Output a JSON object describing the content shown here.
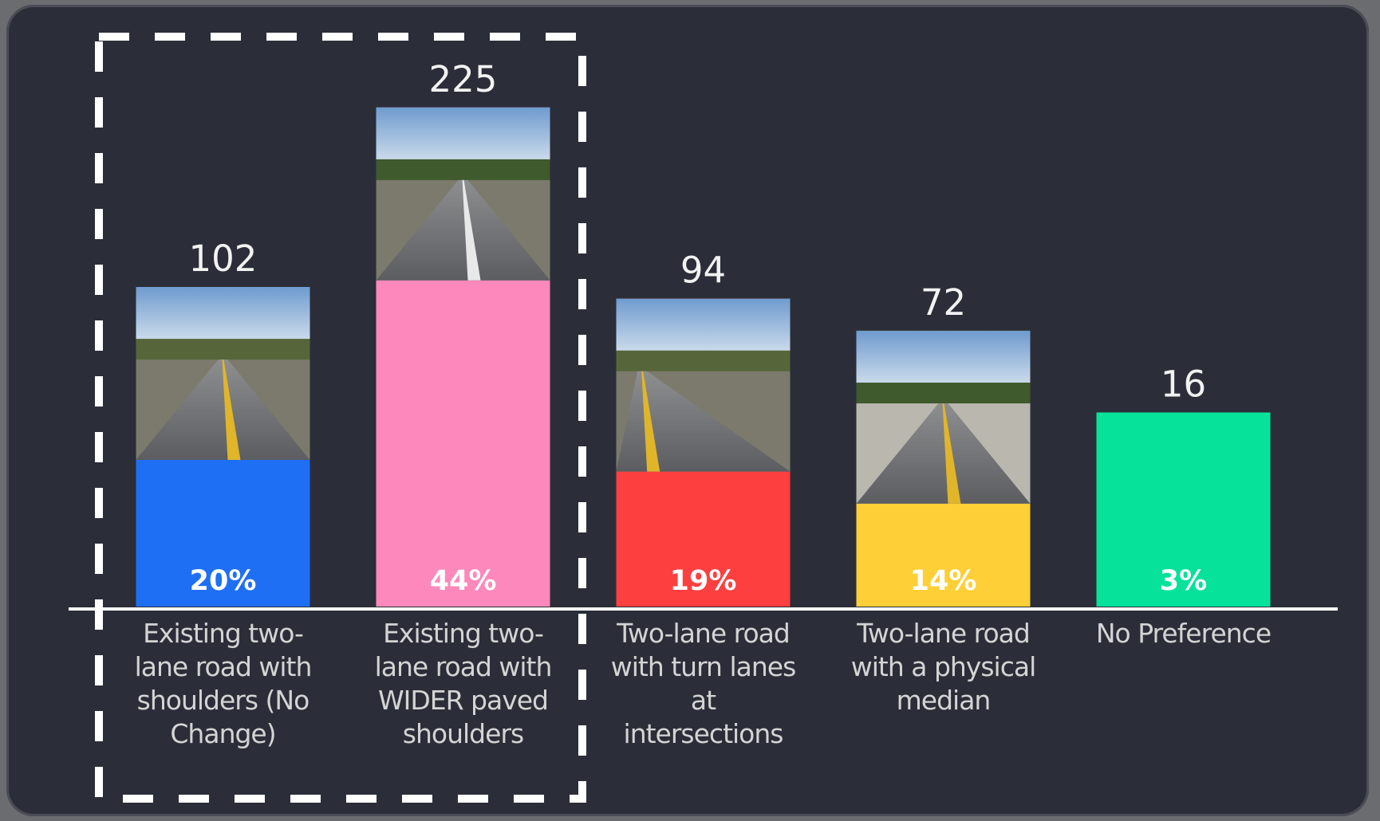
{
  "chart_data": {
    "type": "bar",
    "categories": [
      "Existing two-lane road with shoulders (No Change)",
      "Existing two-lane road with WIDER paved shoulders",
      "Two-lane road with turn lanes at intersections",
      "Two-lane road with a physical median",
      "No Preference"
    ],
    "values": [
      102,
      225,
      94,
      72,
      16
    ],
    "percentages": [
      20,
      44,
      19,
      14,
      3
    ],
    "percentage_labels": [
      "20%",
      "44%",
      "19%",
      "14%",
      "3%"
    ],
    "colors": [
      "#1f6ff5",
      "#fd88bb",
      "#fe3f3f",
      "#fecf36",
      "#06e29a"
    ],
    "ylim": [
      -117,
      250
    ],
    "grid": false
  }
}
